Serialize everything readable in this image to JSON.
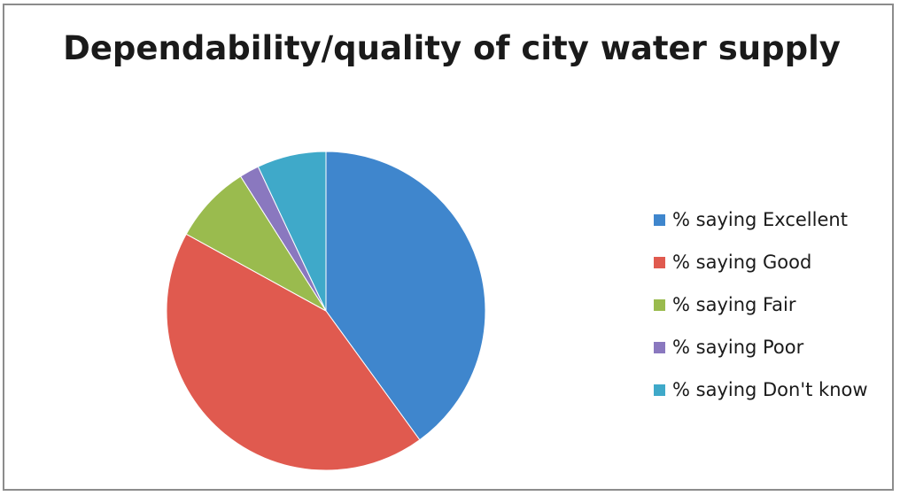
{
  "chart_data": {
    "type": "pie",
    "title": "Dependability/quality of city water supply",
    "categories": [
      "% saying Excellent",
      "% saying Good",
      "% saying Fair",
      "% saying Poor",
      "% saying Don't know"
    ],
    "values": [
      40,
      43,
      8,
      2,
      7
    ],
    "colors": [
      "#3F86CD",
      "#E05A4F",
      "#9ABB4E",
      "#8A78BF",
      "#3FA9C9"
    ],
    "legend_position": "right",
    "start": "top, clockwise"
  }
}
